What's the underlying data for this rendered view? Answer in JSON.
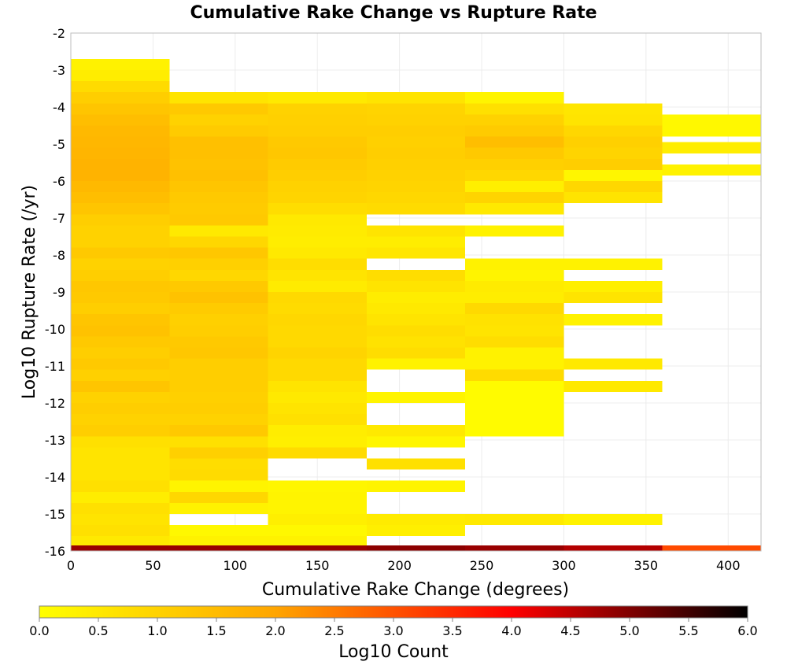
{
  "chart_data": {
    "type": "heatmap",
    "title": "Cumulative Rake Change vs Rupture Rate",
    "xlabel": "Cumulative Rake Change (degrees)",
    "ylabel": "Log10 Rupture Rate (/yr)",
    "xlim": [
      0,
      420
    ],
    "ylim": [
      -16,
      -2
    ],
    "x_ticks": [
      "0",
      "50",
      "100",
      "150",
      "200",
      "250",
      "300",
      "350",
      "400"
    ],
    "y_ticks": [
      "-2",
      "-3",
      "-4",
      "-5",
      "-6",
      "-7",
      "-8",
      "-9",
      "-10",
      "-11",
      "-12",
      "-13",
      "-14",
      "-15",
      "-16"
    ],
    "grid": true,
    "x_bin_width": 60,
    "y_bin_height": 0.3,
    "colorbar": {
      "label": "Log10 Count",
      "range": [
        0,
        6
      ],
      "ticks": [
        "0.0",
        "0.5",
        "1.0",
        "1.5",
        "2.0",
        "2.5",
        "3.0",
        "3.5",
        "4.0",
        "4.5",
        "5.0",
        "5.5",
        "6.0"
      ],
      "colors": [
        "#ffff00",
        "#ffa500",
        "#ff0000",
        "#000000"
      ]
    },
    "columns": [
      {
        "x_start": 0,
        "cells": [
          {
            "y": -2.85,
            "v": 0.3
          },
          {
            "y": -3.15,
            "v": 0.4
          },
          {
            "y": -3.45,
            "v": 0.8
          },
          {
            "y": -3.75,
            "v": 1.1
          },
          {
            "y": -4.05,
            "v": 1.3
          },
          {
            "y": -4.35,
            "v": 1.45
          },
          {
            "y": -4.65,
            "v": 1.55
          },
          {
            "y": -4.95,
            "v": 1.6
          },
          {
            "y": -5.25,
            "v": 1.65
          },
          {
            "y": -5.55,
            "v": 1.7
          },
          {
            "y": -5.85,
            "v": 1.7
          },
          {
            "y": -6.15,
            "v": 1.55
          },
          {
            "y": -6.45,
            "v": 1.45
          },
          {
            "y": -6.75,
            "v": 1.3
          },
          {
            "y": -7.05,
            "v": 1.1
          },
          {
            "y": -7.35,
            "v": 1.0
          },
          {
            "y": -7.65,
            "v": 1.0
          },
          {
            "y": -7.95,
            "v": 1.2
          },
          {
            "y": -8.25,
            "v": 1.0
          },
          {
            "y": -8.55,
            "v": 1.1
          },
          {
            "y": -8.85,
            "v": 1.25
          },
          {
            "y": -9.15,
            "v": 1.2
          },
          {
            "y": -9.45,
            "v": 1.1
          },
          {
            "y": -9.75,
            "v": 1.3
          },
          {
            "y": -10.05,
            "v": 1.35
          },
          {
            "y": -10.35,
            "v": 1.2
          },
          {
            "y": -10.65,
            "v": 1.1
          },
          {
            "y": -10.95,
            "v": 1.2
          },
          {
            "y": -11.25,
            "v": 1.05
          },
          {
            "y": -11.55,
            "v": 1.3
          },
          {
            "y": -11.85,
            "v": 1.0
          },
          {
            "y": -12.15,
            "v": 1.1
          },
          {
            "y": -12.45,
            "v": 1.0
          },
          {
            "y": -12.75,
            "v": 1.1
          },
          {
            "y": -13.05,
            "v": 0.7
          },
          {
            "y": -13.35,
            "v": 0.6
          },
          {
            "y": -13.65,
            "v": 0.6
          },
          {
            "y": -13.95,
            "v": 0.6
          },
          {
            "y": -14.25,
            "v": 0.7
          },
          {
            "y": -14.55,
            "v": 0.4
          },
          {
            "y": -14.85,
            "v": 0.7
          },
          {
            "y": -15.15,
            "v": 0.6
          },
          {
            "y": -15.45,
            "v": 0.7
          },
          {
            "y": -15.75,
            "v": 0.5
          },
          {
            "y": -16.0,
            "v": 4.8
          }
        ]
      },
      {
        "x_start": 60,
        "cells": [
          {
            "y": -3.75,
            "v": 0.6
          },
          {
            "y": -4.05,
            "v": 1.2
          },
          {
            "y": -4.35,
            "v": 1.0
          },
          {
            "y": -4.65,
            "v": 1.15
          },
          {
            "y": -4.95,
            "v": 1.4
          },
          {
            "y": -5.25,
            "v": 1.4
          },
          {
            "y": -5.55,
            "v": 1.35
          },
          {
            "y": -5.85,
            "v": 1.4
          },
          {
            "y": -6.15,
            "v": 1.3
          },
          {
            "y": -6.45,
            "v": 1.2
          },
          {
            "y": -6.75,
            "v": 1.15
          },
          {
            "y": -7.05,
            "v": 1.2
          },
          {
            "y": -7.35,
            "v": 0.5
          },
          {
            "y": -7.65,
            "v": 0.9
          },
          {
            "y": -7.95,
            "v": 1.25
          },
          {
            "y": -8.25,
            "v": 1.05
          },
          {
            "y": -8.55,
            "v": 0.9
          },
          {
            "y": -8.85,
            "v": 1.2
          },
          {
            "y": -9.15,
            "v": 1.35
          },
          {
            "y": -9.45,
            "v": 1.15
          },
          {
            "y": -9.75,
            "v": 1.05
          },
          {
            "y": -10.05,
            "v": 1.1
          },
          {
            "y": -10.35,
            "v": 1.2
          },
          {
            "y": -10.65,
            "v": 1.25
          },
          {
            "y": -10.95,
            "v": 1.1
          },
          {
            "y": -11.25,
            "v": 1.1
          },
          {
            "y": -11.55,
            "v": 1.1
          },
          {
            "y": -11.85,
            "v": 1.05
          },
          {
            "y": -12.15,
            "v": 1.1
          },
          {
            "y": -12.45,
            "v": 1.0
          },
          {
            "y": -12.75,
            "v": 1.2
          },
          {
            "y": -13.05,
            "v": 0.7
          },
          {
            "y": -13.35,
            "v": 1.05
          },
          {
            "y": -13.65,
            "v": 0.75
          },
          {
            "y": -13.95,
            "v": 0.8
          },
          {
            "y": -14.25,
            "v": 0.25
          },
          {
            "y": -14.55,
            "v": 0.9
          },
          {
            "y": -14.85,
            "v": 0.3
          },
          {
            "y": -15.45,
            "v": 0.15
          },
          {
            "y": -15.75,
            "v": 0.3
          },
          {
            "y": -16.0,
            "v": 4.8
          }
        ]
      },
      {
        "x_start": 120,
        "cells": [
          {
            "y": -3.75,
            "v": 0.5
          },
          {
            "y": -4.05,
            "v": 1.0
          },
          {
            "y": -4.35,
            "v": 1.05
          },
          {
            "y": -4.65,
            "v": 1.1
          },
          {
            "y": -4.95,
            "v": 1.2
          },
          {
            "y": -5.25,
            "v": 1.25
          },
          {
            "y": -5.55,
            "v": 1.15
          },
          {
            "y": -5.85,
            "v": 1.1
          },
          {
            "y": -6.15,
            "v": 1.0
          },
          {
            "y": -6.45,
            "v": 0.95
          },
          {
            "y": -6.75,
            "v": 0.75
          },
          {
            "y": -7.05,
            "v": 0.5
          },
          {
            "y": -7.35,
            "v": 0.45
          },
          {
            "y": -7.65,
            "v": 0.4
          },
          {
            "y": -7.95,
            "v": 0.5
          },
          {
            "y": -8.25,
            "v": 0.75
          },
          {
            "y": -8.55,
            "v": 0.6
          },
          {
            "y": -8.85,
            "v": 0.45
          },
          {
            "y": -9.15,
            "v": 0.85
          },
          {
            "y": -9.45,
            "v": 0.8
          },
          {
            "y": -9.75,
            "v": 0.9
          },
          {
            "y": -10.05,
            "v": 0.85
          },
          {
            "y": -10.35,
            "v": 0.85
          },
          {
            "y": -10.65,
            "v": 0.95
          },
          {
            "y": -10.95,
            "v": 0.85
          },
          {
            "y": -11.25,
            "v": 0.85
          },
          {
            "y": -11.55,
            "v": 0.6
          },
          {
            "y": -11.85,
            "v": 0.5
          },
          {
            "y": -12.15,
            "v": 0.6
          },
          {
            "y": -12.45,
            "v": 0.7
          },
          {
            "y": -12.75,
            "v": 0.4
          },
          {
            "y": -13.05,
            "v": 0.35
          },
          {
            "y": -13.35,
            "v": 0.8
          },
          {
            "y": -14.25,
            "v": 0.2
          },
          {
            "y": -14.55,
            "v": 0.25
          },
          {
            "y": -14.85,
            "v": 0.25
          },
          {
            "y": -15.15,
            "v": 0.35
          },
          {
            "y": -15.45,
            "v": 0.15
          },
          {
            "y": -15.75,
            "v": 0.3
          },
          {
            "y": -16.0,
            "v": 4.8
          }
        ]
      },
      {
        "x_start": 180,
        "cells": [
          {
            "y": -3.75,
            "v": 0.6
          },
          {
            "y": -4.05,
            "v": 0.95
          },
          {
            "y": -4.35,
            "v": 1.0
          },
          {
            "y": -4.65,
            "v": 1.1
          },
          {
            "y": -4.95,
            "v": 1.05
          },
          {
            "y": -5.25,
            "v": 1.1
          },
          {
            "y": -5.55,
            "v": 1.05
          },
          {
            "y": -5.85,
            "v": 1.0
          },
          {
            "y": -6.15,
            "v": 0.95
          },
          {
            "y": -6.45,
            "v": 0.9
          },
          {
            "y": -6.75,
            "v": 0.8
          },
          {
            "y": -7.35,
            "v": 0.6
          },
          {
            "y": -7.65,
            "v": 0.4
          },
          {
            "y": -7.95,
            "v": 0.55
          },
          {
            "y": -8.55,
            "v": 0.75
          },
          {
            "y": -8.85,
            "v": 0.6
          },
          {
            "y": -9.15,
            "v": 0.4
          },
          {
            "y": -9.45,
            "v": 0.5
          },
          {
            "y": -9.75,
            "v": 0.6
          },
          {
            "y": -10.05,
            "v": 0.75
          },
          {
            "y": -10.35,
            "v": 0.65
          },
          {
            "y": -10.65,
            "v": 0.75
          },
          {
            "y": -10.95,
            "v": 0.3
          },
          {
            "y": -11.85,
            "v": 0.25
          },
          {
            "y": -12.75,
            "v": 0.5
          },
          {
            "y": -13.05,
            "v": 0.2
          },
          {
            "y": -13.65,
            "v": 0.7
          },
          {
            "y": -14.25,
            "v": 0.25
          },
          {
            "y": -15.15,
            "v": 0.45
          },
          {
            "y": -15.45,
            "v": 0.35
          },
          {
            "y": -16.0,
            "v": 4.9
          }
        ]
      },
      {
        "x_start": 240,
        "cells": [
          {
            "y": -3.75,
            "v": 0.25
          },
          {
            "y": -4.05,
            "v": 0.7
          },
          {
            "y": -4.35,
            "v": 1.0
          },
          {
            "y": -4.65,
            "v": 1.15
          },
          {
            "y": -4.95,
            "v": 1.45
          },
          {
            "y": -5.25,
            "v": 1.2
          },
          {
            "y": -5.55,
            "v": 1.05
          },
          {
            "y": -5.85,
            "v": 0.9
          },
          {
            "y": -6.15,
            "v": 0.35
          },
          {
            "y": -6.45,
            "v": 0.95
          },
          {
            "y": -6.75,
            "v": 0.5
          },
          {
            "y": -7.35,
            "v": 0.3
          },
          {
            "y": -8.25,
            "v": 0.3
          },
          {
            "y": -8.55,
            "v": 0.25
          },
          {
            "y": -8.85,
            "v": 0.45
          },
          {
            "y": -9.15,
            "v": 0.4
          },
          {
            "y": -9.45,
            "v": 0.85
          },
          {
            "y": -9.75,
            "v": 0.65
          },
          {
            "y": -10.05,
            "v": 0.6
          },
          {
            "y": -10.35,
            "v": 0.75
          },
          {
            "y": -10.65,
            "v": 0.3
          },
          {
            "y": -10.95,
            "v": 0.3
          },
          {
            "y": -11.25,
            "v": 0.8
          },
          {
            "y": -11.55,
            "v": 0.1
          },
          {
            "y": -11.85,
            "v": 0.1
          },
          {
            "y": -12.15,
            "v": 0.1
          },
          {
            "y": -12.45,
            "v": 0.1
          },
          {
            "y": -12.75,
            "v": 0.1
          },
          {
            "y": -15.15,
            "v": 0.5
          },
          {
            "y": -16.0,
            "v": 4.8
          }
        ]
      },
      {
        "x_start": 300,
        "cells": [
          {
            "y": -4.05,
            "v": 0.55
          },
          {
            "y": -4.35,
            "v": 0.6
          },
          {
            "y": -4.65,
            "v": 0.9
          },
          {
            "y": -4.95,
            "v": 1.05
          },
          {
            "y": -5.25,
            "v": 0.95
          },
          {
            "y": -5.55,
            "v": 1.1
          },
          {
            "y": -5.85,
            "v": 0.2
          },
          {
            "y": -6.15,
            "v": 0.9
          },
          {
            "y": -6.45,
            "v": 0.6
          },
          {
            "y": -8.25,
            "v": 0.3
          },
          {
            "y": -8.85,
            "v": 0.35
          },
          {
            "y": -9.15,
            "v": 0.6
          },
          {
            "y": -9.75,
            "v": 0.3
          },
          {
            "y": -10.95,
            "v": 0.5
          },
          {
            "y": -11.55,
            "v": 0.5
          },
          {
            "y": -15.15,
            "v": 0.3
          },
          {
            "y": -16.0,
            "v": 4.6
          }
        ]
      },
      {
        "x_start": 360,
        "cells": [
          {
            "y": -4.35,
            "v": 0.15
          },
          {
            "y": -4.65,
            "v": 0.15
          },
          {
            "y": -5.1,
            "v": 0.4
          },
          {
            "y": -5.7,
            "v": 0.3
          },
          {
            "y": -16.0,
            "v": 3.1
          }
        ]
      }
    ]
  }
}
